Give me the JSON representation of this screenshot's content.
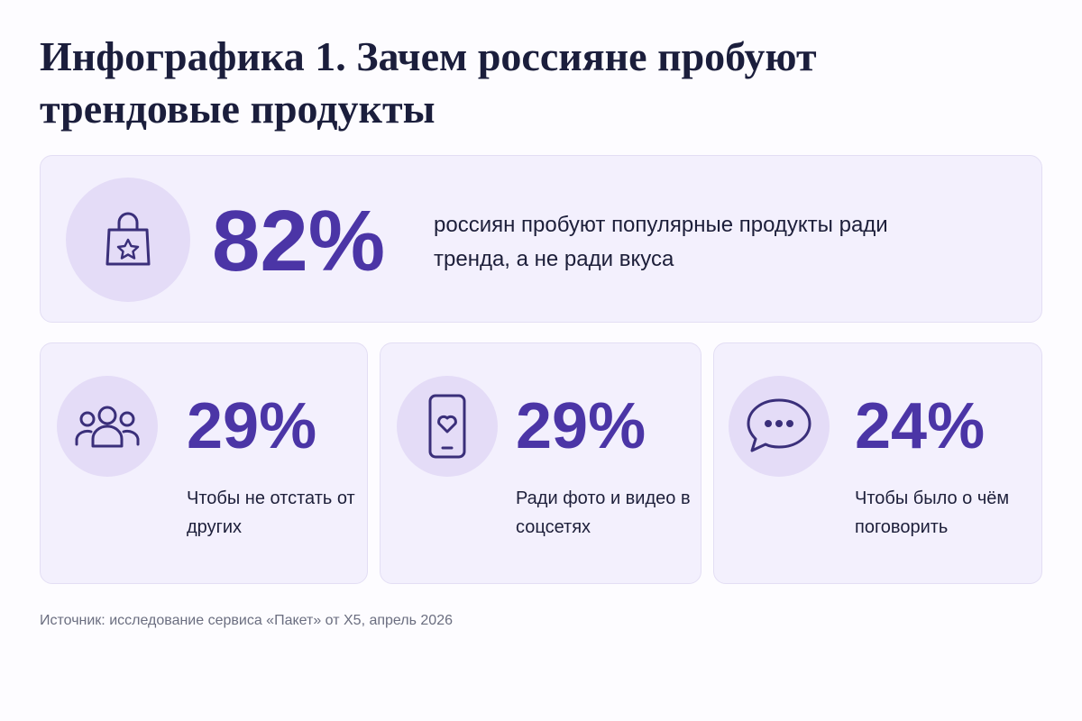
{
  "header": {
    "title": "Инфографика 1. Зачем россияне пробуют трендовые продукты"
  },
  "main": {
    "value": "82%",
    "text": "россиян пробуют популярные продукты ради тренда, а не ради вкуса"
  },
  "cards": [
    {
      "value": "29%",
      "text": "Чтобы не отстать от других"
    },
    {
      "value": "29%",
      "text": "Ради фото и видео в соцсетях"
    },
    {
      "value": "24%",
      "text": "Чтобы было о чём поговорить"
    }
  ],
  "footer": {
    "source": "Источник: исследование сервиса «Пакет» от X5, апрель 2026"
  }
}
